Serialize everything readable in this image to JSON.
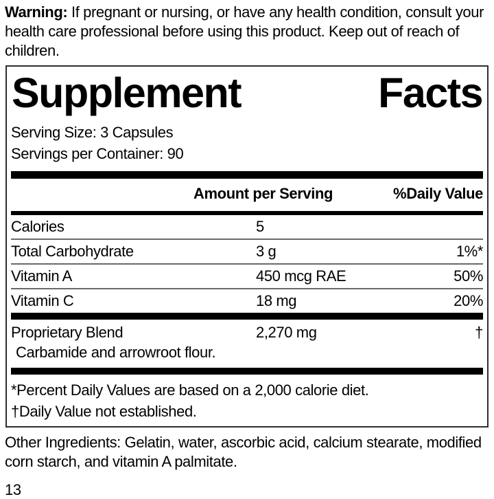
{
  "warning": {
    "label": "Warning:",
    "text": "If pregnant or nursing, or have any health condition, consult your health care professional before using this product. Keep out of reach of children."
  },
  "panel": {
    "title": "Supplement Facts",
    "serving_size": "Serving Size: 3 Capsules",
    "servings_per_container": "Servings per Container: 90",
    "header": {
      "amount": "Amount per Serving",
      "daily_value": "%Daily Value"
    },
    "rows": [
      {
        "name": "Calories",
        "amount": "5",
        "dv": ""
      },
      {
        "name": "Total Carbohydrate",
        "amount": "3 g",
        "dv": "1%*"
      },
      {
        "name": "Vitamin A",
        "amount": "450 mcg RAE",
        "dv": "50%"
      },
      {
        "name": "Vitamin C",
        "amount": "18 mg",
        "dv": "20%"
      }
    ],
    "proprietary": {
      "name": "Proprietary Blend",
      "amount": "2,270 mg",
      "dv": "†",
      "description": "Carbamide and arrowroot flour."
    },
    "footnotes": [
      "*Percent Daily Values are based on a 2,000 calorie diet.",
      "†Daily Value not established."
    ]
  },
  "other_ingredients": "Other Ingredients: Gelatin, water, ascorbic acid, calcium stearate, modified corn starch, and vitamin A palmitate.",
  "page_number": "13",
  "colors": {
    "text": "#000000",
    "background": "#ffffff",
    "rule": "#000000",
    "hairline": "#6a6a6a"
  }
}
